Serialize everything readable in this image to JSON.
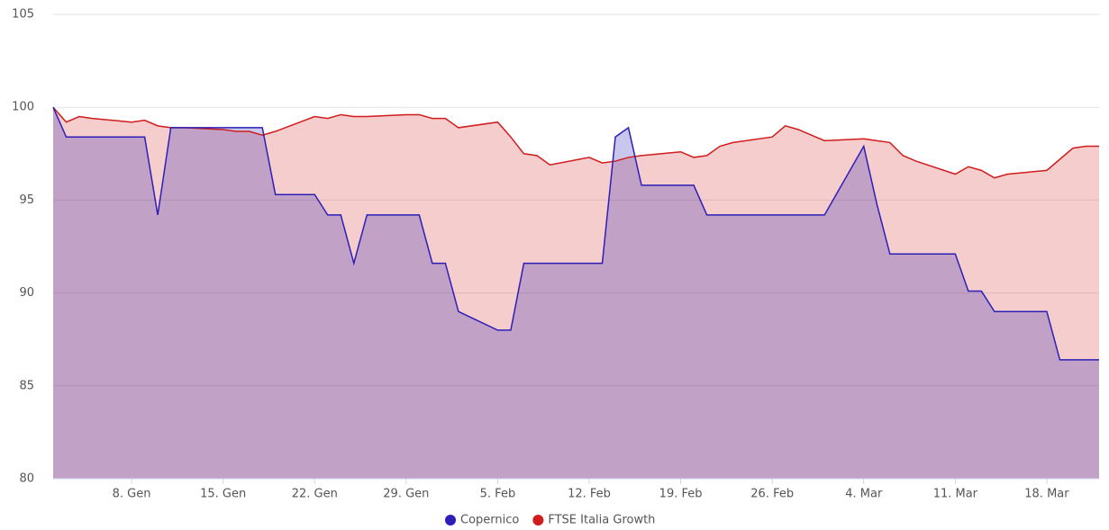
{
  "chart_data": {
    "type": "area",
    "x": [
      2,
      3,
      4,
      5,
      8,
      9,
      10,
      11,
      12,
      15,
      16,
      17,
      18,
      19,
      22,
      23,
      24,
      25,
      26,
      29,
      30,
      31,
      32,
      33,
      36,
      37,
      38,
      39,
      40,
      43,
      44,
      45,
      46,
      47,
      50,
      51,
      52,
      53,
      54,
      57,
      58,
      59,
      60,
      61,
      64,
      65,
      66,
      67,
      68,
      71,
      72,
      73,
      74,
      75,
      78,
      79,
      80,
      81,
      82
    ],
    "series": [
      {
        "name": "FTSE Italia Growth",
        "color": "#d01c1c",
        "values": [
          100,
          99.2,
          99.5,
          99.4,
          99.2,
          99.3,
          99.0,
          98.9,
          98.9,
          98.8,
          98.7,
          98.7,
          98.5,
          98.7,
          99.5,
          99.4,
          99.6,
          99.5,
          99.5,
          99.6,
          99.6,
          99.4,
          99.4,
          98.9,
          99.2,
          98.4,
          97.5,
          97.4,
          96.9,
          97.3,
          97.0,
          97.1,
          97.3,
          97.4,
          97.6,
          97.3,
          97.4,
          97.9,
          98.1,
          98.4,
          99.0,
          98.8,
          98.5,
          98.2,
          98.3,
          98.2,
          98.1,
          97.4,
          97.1,
          96.4,
          96.8,
          96.6,
          96.2,
          96.4,
          96.6,
          97.2,
          97.8,
          97.9,
          97.9
        ]
      },
      {
        "name": "Copernico",
        "color": "#2b1fb8",
        "values": [
          100,
          98.4,
          98.4,
          98.4,
          98.4,
          98.4,
          94.2,
          98.9,
          98.9,
          98.9,
          98.9,
          98.9,
          98.9,
          95.3,
          95.3,
          94.2,
          94.2,
          91.6,
          94.2,
          94.2,
          94.2,
          91.6,
          91.6,
          89.0,
          88.0,
          88.0,
          91.6,
          91.6,
          91.6,
          91.6,
          91.6,
          98.4,
          98.9,
          95.8,
          95.8,
          95.8,
          94.2,
          94.2,
          94.2,
          94.2,
          94.2,
          94.2,
          94.2,
          94.2,
          97.9,
          94.8,
          92.1,
          92.1,
          92.1,
          92.1,
          90.1,
          90.1,
          89.0,
          89.0,
          89.0,
          86.4,
          86.4,
          86.4,
          86.4
        ]
      }
    ],
    "legend_order": [
      "Copernico",
      "FTSE Italia Growth"
    ],
    "xlim": [
      2,
      82
    ],
    "xticks": [
      {
        "value": 8,
        "label": "8. Gen"
      },
      {
        "value": 15,
        "label": "15. Gen"
      },
      {
        "value": 22,
        "label": "22. Gen"
      },
      {
        "value": 29,
        "label": "29. Gen"
      },
      {
        "value": 36,
        "label": "5. Feb"
      },
      {
        "value": 43,
        "label": "12. Feb"
      },
      {
        "value": 50,
        "label": "19. Feb"
      },
      {
        "value": 57,
        "label": "26. Feb"
      },
      {
        "value": 64,
        "label": "4. Mar"
      },
      {
        "value": 71,
        "label": "11. Mar"
      },
      {
        "value": 78,
        "label": "18. Mar"
      }
    ],
    "ylim": [
      80,
      105
    ],
    "yticks": [
      80,
      85,
      90,
      95,
      100,
      105
    ],
    "grid": true,
    "legend": "bottom"
  }
}
